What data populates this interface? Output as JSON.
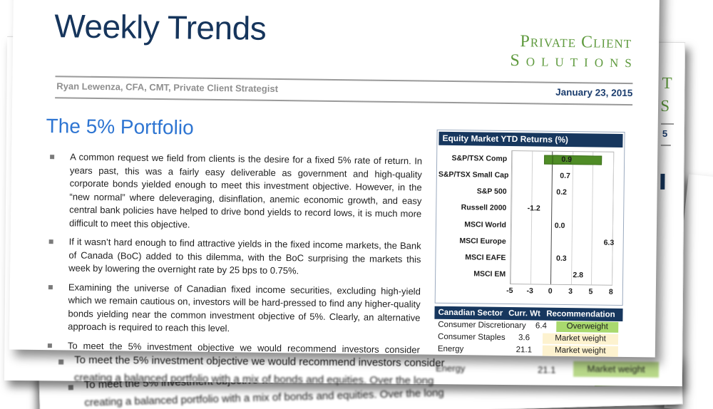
{
  "page": {
    "title": "Weekly Trends",
    "logo": {
      "line1": "Private Client",
      "line2": "Solutions"
    },
    "byline": "Ryan Lewenza, CFA, CMT, Private Client Strategist",
    "date": "January 23, 2015",
    "section_title": "The 5% Portfolio",
    "bullets": [
      "A common request we field from clients is the desire for a fixed 5% rate of return. In years past, this was a fairly easy deliverable as government and high-quality corporate bonds yielded enough to meet this investment objective. However, in the “new normal” where deleveraging, disinflation, anemic economic growth, and easy central bank policies have helped to drive bond yields to record lows, it is much more difficult to meet this objective.",
      "If it wasn’t hard enough to find attractive yields in the fixed income markets, the Bank of Canada (BoC) added to this dilemma, with the BoC surprising the markets this week by lowering the overnight rate by 25 bps to 0.75%.",
      "Examining the universe of Canadian fixed income securities, excluding high-yield which we remain cautious on, investors will be hard-pressed to find any higher-quality bonds yielding near the common investment objective of 5%. Clearly, an alternative approach is required to reach this level.",
      "To meet the 5% investment objective we would recommend investors consider creating a balanced portfolio with a mix of bonds and equities. Over the long"
    ]
  },
  "chart_data": {
    "type": "bar",
    "orientation": "horizontal",
    "title": "Equity Market YTD Returns (%)",
    "categories": [
      "S&P/TSX Comp",
      "S&P/TSX Small Cap",
      "S&P 500",
      "Russell 2000",
      "MSCI World",
      "MSCI Europe",
      "MSCI EAFE",
      "MSCI EM"
    ],
    "values": [
      0.9,
      0.7,
      0.2,
      -1.2,
      0.0,
      6.3,
      0.3,
      2.8
    ],
    "xticks": [
      -5,
      -3,
      0,
      3,
      5,
      8
    ],
    "xlim": [
      -5,
      8
    ],
    "bar_color": "#4f8c26",
    "grid": true
  },
  "sector_table": {
    "headers": [
      "Canadian Sector",
      "Curr. Wt",
      "Recommendation"
    ],
    "rows": [
      {
        "sector": "Consumer Discretionary",
        "weight": "6.4",
        "recommendation": "Overweight",
        "highlight": "#a9d96e"
      },
      {
        "sector": "Consumer Staples",
        "weight": "3.6",
        "recommendation": "Market weight",
        "highlight": "#fdf2cf"
      },
      {
        "sector": "Energy",
        "weight": "21.1",
        "recommendation": "Market weight",
        "highlight": "#fdf2cf"
      }
    ],
    "next_row_sliver_color": "#a9d96e"
  },
  "back_pages": {
    "repeat_line1": "To meet the 5% investment objective we would recommend investors consider",
    "repeat_line2": "creating a balanced portfolio with a mix of bonds and equities. Over the long",
    "energy_row": {
      "sector": "Energy",
      "weight": "21.1",
      "recommendation": "Market weight"
    },
    "fragments": {
      "t": "T",
      "s": "S",
      "five": "5"
    }
  },
  "colors": {
    "navy": "#17375e",
    "logo_green": "#5f9a3e",
    "section_blue": "#2e75d2",
    "bar_green": "#4f8c26",
    "overweight_green": "#a9d96e",
    "marketweight_cream": "#fdf2cf"
  }
}
